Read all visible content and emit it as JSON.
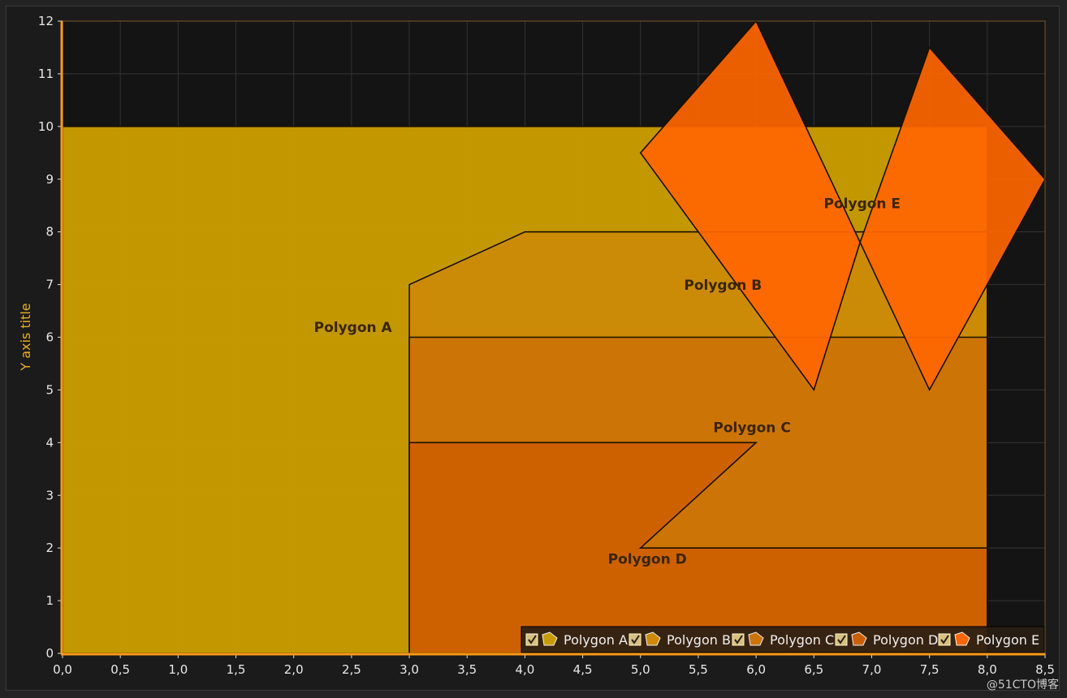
{
  "chart_data": {
    "type": "polygon",
    "ylabel": "Y axis title",
    "xlim": [
      0,
      8.5
    ],
    "ylim": [
      0,
      12
    ],
    "x_ticks": [
      "0,0",
      "0,5",
      "1,0",
      "1,5",
      "2,0",
      "2,5",
      "3,0",
      "3,5",
      "4,0",
      "4,5",
      "5,0",
      "5,5",
      "6,0",
      "6,5",
      "7,0",
      "7,5",
      "8,0",
      "8,5"
    ],
    "y_ticks": [
      "0",
      "1",
      "2",
      "3",
      "4",
      "5",
      "6",
      "7",
      "8",
      "9",
      "10",
      "11",
      "12"
    ],
    "grid": true,
    "legend_position": "bottom-right",
    "series": [
      {
        "name": "Polygon A",
        "color": "#c89c00",
        "points": [
          [
            0,
            0
          ],
          [
            0,
            10
          ],
          [
            8,
            10
          ],
          [
            8,
            0
          ]
        ],
        "label_at": [
          2.85,
          6.1
        ]
      },
      {
        "name": "Polygon B",
        "color": "#cc8a06",
        "points": [
          [
            3,
            0
          ],
          [
            3,
            7
          ],
          [
            4,
            8
          ],
          [
            8,
            8
          ],
          [
            8,
            0
          ]
        ],
        "label_at": [
          6.05,
          6.9
        ]
      },
      {
        "name": "Polygon C",
        "color": "#cc7406",
        "points": [
          [
            3,
            0
          ],
          [
            3,
            6
          ],
          [
            8,
            6
          ],
          [
            8,
            0
          ]
        ],
        "label_at": [
          6.3,
          4.2
        ]
      },
      {
        "name": "Polygon D",
        "color": "#cc6000",
        "points": [
          [
            3,
            0
          ],
          [
            3,
            4
          ],
          [
            6,
            4
          ],
          [
            5,
            2
          ],
          [
            8,
            2
          ],
          [
            8,
            0
          ]
        ],
        "label_at": [
          5.4,
          1.7
        ]
      },
      {
        "name": "Polygon E",
        "color": "#ff6600",
        "points": [
          [
            5,
            9.5
          ],
          [
            6,
            12
          ],
          [
            6.9,
            7.8
          ],
          [
            7.5,
            11.5
          ],
          [
            8.5,
            9
          ],
          [
            7.5,
            5
          ],
          [
            6.9,
            7.8
          ],
          [
            6.5,
            5
          ]
        ],
        "label_at": [
          7.25,
          8.45
        ]
      }
    ]
  },
  "watermark": "@51CTO博客"
}
